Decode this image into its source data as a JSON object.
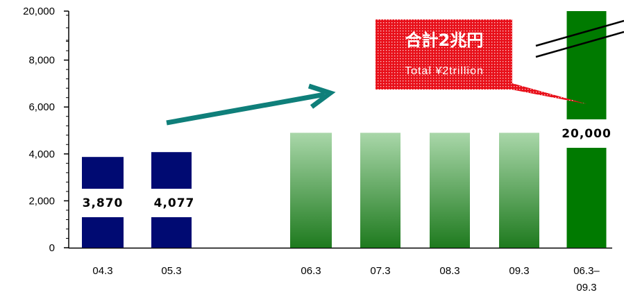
{
  "chart_data": {
    "type": "bar",
    "categories": [
      "04.3",
      "05.3",
      "06.3",
      "07.3",
      "08.3",
      "09.3",
      "06.3–\n09.3"
    ],
    "values": [
      3870,
      4077,
      4900,
      4900,
      4900,
      4900,
      20000
    ],
    "data_labels": [
      "3,870",
      "4,077",
      "",
      "",
      "",
      "",
      "20,000"
    ],
    "y_ticks": [
      "0",
      "2,000",
      "4,000",
      "6,000",
      "8,000",
      "20,000"
    ],
    "ylim": [
      0,
      20000
    ],
    "axis_break": "between 8,000 and 20,000",
    "grid": false,
    "legend": "none",
    "colors": {
      "actual": "#000a72",
      "planned_top": "#a9d7a9",
      "planned_bottom": "#1e7a1e",
      "total": "#007a00",
      "arrow": "#0f7f7a",
      "callout": "#e8101a"
    },
    "annotation": {
      "main": "合計2兆円",
      "sub": "Total ¥2trillion"
    }
  }
}
